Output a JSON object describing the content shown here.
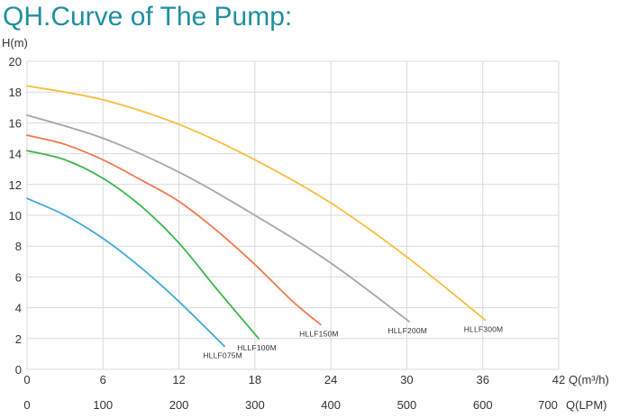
{
  "chart_data": {
    "type": "line",
    "title": "QH.Curve of The Pump:",
    "ylabel": "H(m)",
    "xlabel": "Q(m³/h)",
    "x2label": "Q(LPM)",
    "xlim": [
      0,
      42
    ],
    "ylim": [
      0,
      20
    ],
    "x2lim": [
      0,
      700
    ],
    "xticks": [
      0,
      6,
      12,
      18,
      24,
      30,
      36,
      42
    ],
    "yticks": [
      0,
      2,
      4,
      6,
      8,
      10,
      12,
      14,
      16,
      18,
      20
    ],
    "x2ticks": [
      0,
      100,
      200,
      300,
      400,
      500,
      600,
      700
    ],
    "grid": true,
    "series": [
      {
        "name": "HLLF075M",
        "color": "#3fa8d8",
        "x": [
          0,
          3,
          6,
          9,
          12,
          15.6
        ],
        "y": [
          11.1,
          10.0,
          8.5,
          6.6,
          4.4,
          1.5
        ]
      },
      {
        "name": "HLLF100M",
        "color": "#3cb54a",
        "x": [
          0,
          3,
          6,
          9,
          12,
          15,
          18.3
        ],
        "y": [
          14.2,
          13.6,
          12.4,
          10.6,
          8.2,
          5.2,
          2.0
        ]
      },
      {
        "name": "HLLF150M",
        "color": "#f07850",
        "x": [
          0,
          3,
          6,
          9,
          12,
          15,
          18,
          21,
          23.2
        ],
        "y": [
          15.2,
          14.6,
          13.6,
          12.3,
          10.9,
          9.0,
          6.8,
          4.4,
          2.9
        ]
      },
      {
        "name": "HLLF200M",
        "color": "#a6a6a6",
        "x": [
          0,
          6,
          12,
          18,
          24,
          30.2
        ],
        "y": [
          16.5,
          15.0,
          12.8,
          10.0,
          6.9,
          3.1
        ]
      },
      {
        "name": "HLLF300M",
        "color": "#f8bd3e",
        "x": [
          0,
          6,
          12,
          18,
          24,
          30,
          36.2
        ],
        "y": [
          18.4,
          17.5,
          15.9,
          13.6,
          10.8,
          7.3,
          3.2
        ]
      }
    ]
  }
}
